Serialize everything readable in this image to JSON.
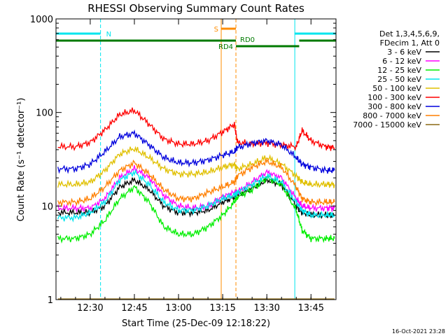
{
  "page": {
    "title": "RHESSI Observing Summary Count Rates",
    "xlabel": "Start Time (25-Dec-09 12:18:22)",
    "ylabel": "Count Rate (s⁻¹ detector⁻¹)",
    "timestamp": "16-Oct-2021 23:28"
  },
  "legend": {
    "header": [
      "Det 1,3,4,5,6,9,",
      "FDecim 1, Att 0"
    ],
    "placement": "right"
  },
  "annotations": {
    "night": "N",
    "saa": "S",
    "rd0": "RD0",
    "rd4": "RD4"
  },
  "colors": {
    "night": "#00e5ee",
    "saa": "#ff8c00",
    "decim": "#007a00"
  },
  "chart_data": {
    "type": "line",
    "title": "RHESSI Observing Summary Count Rates",
    "xlabel": "Start Time (25-Dec-09 12:18:22)",
    "ylabel": "Count Rate (s⁻¹ detector⁻¹)",
    "y_scale": "log",
    "xlim": [
      "12:18:22",
      "13:53:30"
    ],
    "ylim": [
      1,
      1000
    ],
    "x_ticks": [
      "12:30",
      "12:45",
      "13:00",
      "13:15",
      "13:30",
      "13:45"
    ],
    "y_ticks": [
      "1",
      "10",
      "100",
      "1000"
    ],
    "grid": false,
    "x": [
      "12:19",
      "12:25",
      "12:30",
      "12:35",
      "12:40",
      "12:45",
      "12:50",
      "12:55",
      "13:00",
      "13:05",
      "13:10",
      "13:15",
      "13:19",
      "13:20",
      "13:25",
      "13:30",
      "13:35",
      "13:40",
      "13:42",
      "13:45",
      "13:50",
      "13:53"
    ],
    "series": [
      {
        "name": "3 - 6 keV",
        "color": "#000000",
        "values": [
          8.5,
          8.5,
          8.5,
          10,
          16,
          19,
          15,
          10,
          8.5,
          8.5,
          9,
          11,
          12.5,
          13,
          15.5,
          19,
          17,
          10,
          8.5,
          8,
          8,
          8
        ]
      },
      {
        "name": "6 - 12 keV",
        "color": "#ff00ff",
        "values": [
          9.5,
          9.5,
          9.5,
          12,
          20,
          25,
          20,
          13,
          10,
          9.5,
          10,
          12.5,
          14,
          14,
          18,
          23,
          20,
          12,
          10,
          9.5,
          9.5,
          9.5
        ]
      },
      {
        "name": "12 - 25 keV",
        "color": "#00ee00",
        "values": [
          4.5,
          4.5,
          5,
          7,
          12,
          16,
          11,
          6,
          5,
          5,
          6,
          8,
          11,
          12.5,
          15,
          20,
          17,
          9,
          5.5,
          4.5,
          4.5,
          4.5
        ]
      },
      {
        "name": "25 - 50 keV",
        "color": "#00e5ee",
        "values": [
          7.5,
          7.5,
          8.5,
          11,
          19,
          23,
          17,
          11,
          9,
          9,
          10,
          12,
          13,
          14,
          17,
          21,
          18,
          11,
          9,
          8,
          8,
          8
        ]
      },
      {
        "name": "50 - 100 keV",
        "color": "#e0c000",
        "values": [
          17,
          17,
          18,
          24,
          36,
          41,
          33,
          25,
          22,
          22,
          23,
          26,
          28,
          25,
          28,
          33,
          28,
          21,
          18,
          17,
          17,
          17
        ]
      },
      {
        "name": "100 - 300 keV",
        "color": "#ff0000",
        "values": [
          43,
          43,
          48,
          65,
          95,
          105,
          75,
          52,
          46,
          46,
          50,
          62,
          75,
          48,
          46,
          47,
          45,
          43,
          64,
          50,
          43,
          42
        ]
      },
      {
        "name": "300 - 800 keV",
        "color": "#0000dd",
        "values": [
          25,
          25,
          28,
          38,
          55,
          60,
          45,
          33,
          29,
          29,
          31,
          35,
          38,
          42,
          47,
          50,
          45,
          33,
          28,
          26,
          24,
          24
        ]
      },
      {
        "name": "800 - 7000 keV",
        "color": "#ff7f00",
        "values": [
          11,
          11,
          12,
          16,
          24,
          29,
          22,
          15,
          12,
          12,
          14,
          16,
          18,
          21,
          26,
          30,
          26,
          16,
          12,
          11,
          11,
          11
        ]
      },
      {
        "name": "7000 - 15000 keV",
        "color": "#8b6914",
        "values": [
          1,
          1,
          1,
          1,
          1,
          1,
          1,
          1,
          1,
          1,
          1,
          1,
          1,
          1,
          1,
          1,
          1,
          1,
          1,
          1,
          1,
          1
        ]
      }
    ],
    "events": {
      "night": [
        [
          "12:18:22",
          "12:33:30"
        ],
        [
          "13:39:30",
          "13:53:30"
        ]
      ],
      "saa": [
        [
          "13:14:30",
          "13:19:30"
        ]
      ],
      "decim_RD0": [
        [
          "13:19:30",
          "13:41:00"
        ]
      ],
      "decim_RD4": [
        [
          "12:18:22",
          "13:19:30"
        ],
        [
          "13:41:00",
          "13:53:30"
        ]
      ]
    }
  }
}
